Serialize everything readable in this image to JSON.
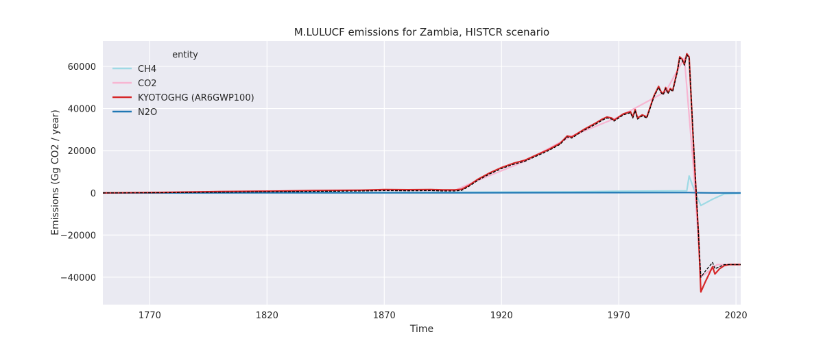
{
  "chart_data": {
    "type": "line",
    "title": "M.LULUCF emissions for Zambia, HISTCR scenario",
    "xlabel": "Time",
    "ylabel": "Emissions (Gg CO2 / year)",
    "xlim": [
      1750,
      2022
    ],
    "ylim": [
      -53000,
      72000
    ],
    "xticks": [
      1770,
      1820,
      1870,
      1920,
      1970,
      2020
    ],
    "yticks": [
      -40000,
      -20000,
      0,
      20000,
      40000,
      60000
    ],
    "xtick_labels": [
      "1770",
      "1820",
      "1870",
      "1920",
      "1970",
      "2020"
    ],
    "ytick_labels": [
      "−40000",
      "−20000",
      "0",
      "20000",
      "40000",
      "60000"
    ],
    "grid": true,
    "legend": {
      "title": "entity",
      "position": "top-left"
    },
    "series": [
      {
        "name": "CH4",
        "color": "#9edae5",
        "x": [
          1750,
          1800,
          1850,
          1900,
          1950,
          1970,
          1999,
          2000,
          2002,
          2005,
          2010,
          2015,
          2022
        ],
        "y": [
          0,
          100,
          200,
          300,
          500,
          800,
          1000,
          8000,
          2000,
          -6000,
          -3000,
          -500,
          -200
        ]
      },
      {
        "name": "CO2",
        "color": "#f7b6d2",
        "x": [
          1750,
          1800,
          1850,
          1900,
          1910,
          1930,
          1950,
          1970,
          1990,
          1998,
          2002,
          2005,
          2012,
          2018,
          2022
        ],
        "y": [
          0,
          600,
          1300,
          1200,
          6000,
          15000,
          27000,
          36000,
          48000,
          64000,
          10000,
          -40000,
          -34000,
          -34000,
          -34000
        ]
      },
      {
        "name": "KYOTOGHG (AR6GWP100)",
        "color": "#d62728",
        "x": [
          1750,
          1775,
          1800,
          1820,
          1840,
          1860,
          1870,
          1880,
          1890,
          1895,
          1900,
          1903,
          1906,
          1910,
          1915,
          1920,
          1925,
          1930,
          1935,
          1940,
          1945,
          1948,
          1950,
          1955,
          1960,
          1963,
          1965,
          1967,
          1968,
          1970,
          1972,
          1975,
          1976,
          1977,
          1978,
          1980,
          1982,
          1985,
          1987,
          1988,
          1989,
          1990,
          1991,
          1992,
          1993,
          1995,
          1996,
          1997,
          1998,
          1999,
          2000,
          2002,
          2004,
          2005,
          2007,
          2010,
          2011,
          2013,
          2015,
          2017,
          2020,
          2022
        ],
        "y": [
          0,
          200,
          600,
          800,
          1100,
          1300,
          1600,
          1500,
          1600,
          1400,
          1400,
          1700,
          3500,
          6500,
          9500,
          12000,
          14000,
          15500,
          18000,
          20500,
          23500,
          27000,
          26500,
          30000,
          33000,
          35000,
          36000,
          35500,
          34500,
          36000,
          37500,
          38500,
          36000,
          39500,
          35500,
          37000,
          36000,
          46000,
          50500,
          48000,
          47000,
          50000,
          47500,
          49500,
          48500,
          58000,
          64500,
          63500,
          61000,
          66000,
          64500,
          20000,
          -20000,
          -47000,
          -42000,
          -35000,
          -38500,
          -36000,
          -34500,
          -34000,
          -34000,
          -34000
        ]
      },
      {
        "name": "N2O",
        "color": "#1f77b4",
        "x": [
          1750,
          1900,
          2000,
          2005,
          2010,
          2022
        ],
        "y": [
          0,
          50,
          150,
          50,
          0,
          0
        ]
      },
      {
        "name": "",
        "color": "#000000",
        "dashed": true,
        "x": [
          1750,
          1775,
          1800,
          1820,
          1840,
          1860,
          1870,
          1880,
          1890,
          1895,
          1900,
          1903,
          1906,
          1910,
          1915,
          1920,
          1925,
          1930,
          1935,
          1940,
          1945,
          1948,
          1950,
          1955,
          1960,
          1963,
          1965,
          1967,
          1968,
          1970,
          1972,
          1975,
          1976,
          1977,
          1978,
          1980,
          1982,
          1985,
          1987,
          1988,
          1989,
          1990,
          1991,
          1992,
          1993,
          1995,
          1996,
          1997,
          1998,
          1999,
          2000,
          2002,
          2004,
          2005,
          2007,
          2010,
          2011,
          2013,
          2015,
          2017,
          2020,
          2022
        ],
        "y": [
          0,
          100,
          300,
          500,
          700,
          900,
          1100,
          1000,
          1100,
          900,
          900,
          1200,
          3000,
          6000,
          9000,
          11500,
          13500,
          15000,
          17500,
          20000,
          23000,
          26500,
          26000,
          29500,
          32500,
          34500,
          35500,
          35000,
          34000,
          35500,
          37000,
          38000,
          35500,
          39000,
          35000,
          36500,
          35500,
          45500,
          50000,
          47500,
          46500,
          49500,
          47000,
          49000,
          48000,
          57500,
          64000,
          63000,
          60500,
          65500,
          64000,
          22000,
          -20000,
          -40000,
          -37000,
          -33000,
          -36000,
          -35000,
          -34000,
          -34000,
          -34000,
          -34000
        ]
      }
    ]
  }
}
